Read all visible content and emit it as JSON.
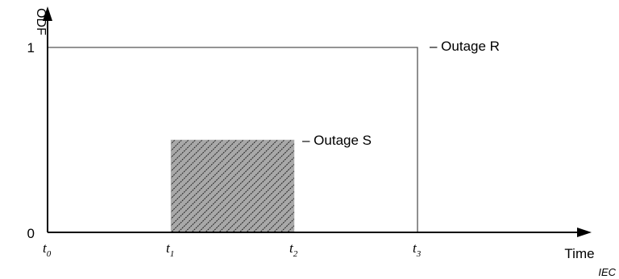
{
  "chart_data": {
    "type": "line",
    "title": "",
    "xlabel": "Time",
    "ylabel": "ODF",
    "ylim": [
      0,
      1
    ],
    "y_ticks": [
      "0",
      "1"
    ],
    "x_ticks": [
      {
        "main": "t",
        "sub": "0",
        "x": 0
      },
      {
        "main": "t",
        "sub": "1",
        "x": 1
      },
      {
        "main": "t",
        "sub": "2",
        "x": 2
      },
      {
        "main": "t",
        "sub": "3",
        "x": 3
      }
    ],
    "series": [
      {
        "name": "– Outage R",
        "x_start": 0,
        "x_end": 3,
        "value": 1,
        "style": "outline"
      },
      {
        "name": "– Outage S",
        "x_start": 1,
        "x_end": 2,
        "value": 0.5,
        "style": "hatched"
      }
    ],
    "credit": "IEC",
    "colors": {
      "axis": "#000000",
      "outage_r": "#555555",
      "outage_s_fill": "#9a9a9a",
      "outage_s_hatch": "#222222"
    }
  }
}
